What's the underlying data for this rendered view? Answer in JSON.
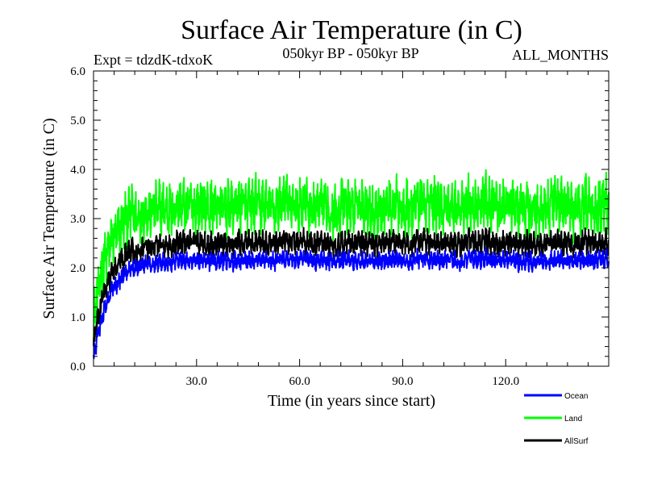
{
  "chart_data": {
    "type": "line",
    "title": "Surface Air Temperature (in C)",
    "subtitle_left": "Expt = tdzdK-tdxoK",
    "subtitle_center": "050kyr BP - 050kyr BP",
    "subtitle_right": "ALL_MONTHS",
    "xlabel": "Time (in years since start)",
    "ylabel": "Surface Air Temperature (in C)",
    "xlim": [
      0,
      150
    ],
    "ylim": [
      0,
      6
    ],
    "x_ticks": [
      30,
      60,
      90,
      120
    ],
    "x_tick_labels": [
      "30.0",
      "60.0",
      "90.0",
      "120.0"
    ],
    "y_ticks": [
      0,
      1,
      2,
      3,
      4,
      5,
      6
    ],
    "y_tick_labels": [
      "0.0",
      "1.0",
      "2.0",
      "3.0",
      "4.0",
      "5.0",
      "6.0"
    ],
    "legend_position": "bottom-right",
    "sampling": "monthly (12 points per year)",
    "series": [
      {
        "name": "Ocean",
        "color": "#0000ff",
        "start": 0.15,
        "plateau": 2.15,
        "spinup_years": 14,
        "noise": 0.28
      },
      {
        "name": "Land",
        "color": "#00ff00",
        "start": 0.9,
        "plateau": 3.25,
        "spinup_years": 14,
        "noise": 0.85
      },
      {
        "name": "AllSurf",
        "color": "#000000",
        "start": 0.45,
        "plateau": 2.5,
        "spinup_years": 14,
        "noise": 0.38
      }
    ]
  }
}
